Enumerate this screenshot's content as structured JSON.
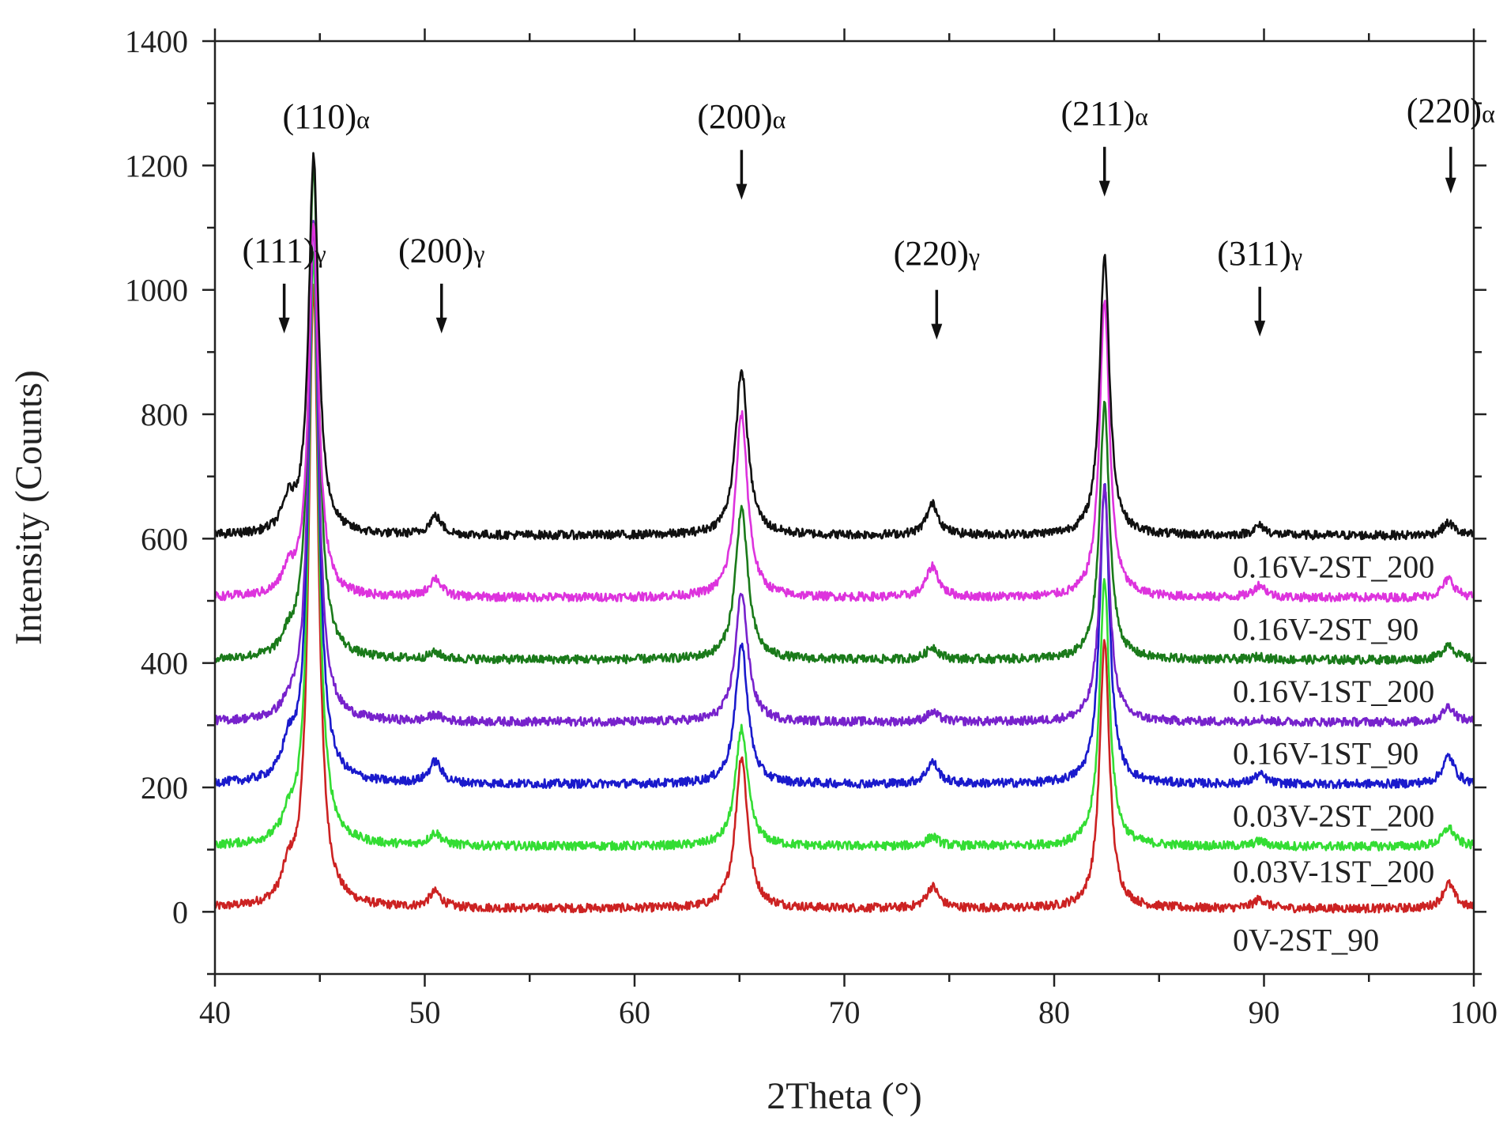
{
  "chart_data": {
    "type": "line",
    "title": "",
    "xlabel": "2Theta (°)",
    "ylabel": "Intensity (Counts)",
    "xlim": [
      40,
      100
    ],
    "ylim": [
      -100,
      1400
    ],
    "xticks": [
      40,
      50,
      60,
      70,
      80,
      90,
      100
    ],
    "yticks": [
      0,
      200,
      400,
      600,
      800,
      1000,
      1200,
      1400
    ],
    "grid": false,
    "series": [
      {
        "name": "0V-2ST_90",
        "color": "#cc2222",
        "baseline": 5,
        "peaks": [
          {
            "x": 43.5,
            "h": 45
          },
          {
            "x": 44.7,
            "h": 1000
          },
          {
            "x": 50.5,
            "h": 25
          },
          {
            "x": 65.1,
            "h": 245
          },
          {
            "x": 74.2,
            "h": 35
          },
          {
            "x": 82.4,
            "h": 430
          },
          {
            "x": 89.8,
            "h": 15
          },
          {
            "x": 98.8,
            "h": 40
          }
        ]
      },
      {
        "name": "0.03V-1ST_200",
        "color": "#33dd33",
        "baseline": 105,
        "peaks": [
          {
            "x": 43.5,
            "h": 30
          },
          {
            "x": 44.7,
            "h": 950
          },
          {
            "x": 50.5,
            "h": 20
          },
          {
            "x": 65.1,
            "h": 190
          },
          {
            "x": 74.2,
            "h": 15
          },
          {
            "x": 82.4,
            "h": 430
          },
          {
            "x": 89.8,
            "h": 8
          },
          {
            "x": 98.8,
            "h": 30
          }
        ]
      },
      {
        "name": "0.03V-2ST_200",
        "color": "#1a1acc",
        "baseline": 205,
        "peaks": [
          {
            "x": 43.5,
            "h": 50
          },
          {
            "x": 44.7,
            "h": 900
          },
          {
            "x": 50.5,
            "h": 35
          },
          {
            "x": 65.1,
            "h": 225
          },
          {
            "x": 74.2,
            "h": 35
          },
          {
            "x": 82.4,
            "h": 480
          },
          {
            "x": 89.8,
            "h": 15
          },
          {
            "x": 98.8,
            "h": 45
          }
        ]
      },
      {
        "name": "0.16V-1ST_90",
        "color": "#7722cc",
        "baseline": 305,
        "peaks": [
          {
            "x": 43.5,
            "h": 15
          },
          {
            "x": 44.7,
            "h": 800
          },
          {
            "x": 50.5,
            "h": 10
          },
          {
            "x": 65.1,
            "h": 210
          },
          {
            "x": 74.2,
            "h": 15
          },
          {
            "x": 82.4,
            "h": 380
          },
          {
            "x": 89.8,
            "h": 5
          },
          {
            "x": 98.8,
            "h": 25
          }
        ]
      },
      {
        "name": "0.16V-1ST_200",
        "color": "#1a7a1a",
        "baseline": 405,
        "peaks": [
          {
            "x": 43.5,
            "h": 25
          },
          {
            "x": 44.7,
            "h": 800
          },
          {
            "x": 50.5,
            "h": 10
          },
          {
            "x": 65.1,
            "h": 245
          },
          {
            "x": 74.2,
            "h": 20
          },
          {
            "x": 82.4,
            "h": 410
          },
          {
            "x": 89.8,
            "h": 5
          },
          {
            "x": 98.8,
            "h": 25
          }
        ]
      },
      {
        "name": "0.16V-2ST_90",
        "color": "#dd33dd",
        "baseline": 505,
        "peaks": [
          {
            "x": 43.5,
            "h": 35
          },
          {
            "x": 44.7,
            "h": 600
          },
          {
            "x": 50.5,
            "h": 30
          },
          {
            "x": 65.1,
            "h": 295
          },
          {
            "x": 74.2,
            "h": 50
          },
          {
            "x": 82.4,
            "h": 480
          },
          {
            "x": 89.8,
            "h": 20
          },
          {
            "x": 98.8,
            "h": 30
          }
        ]
      },
      {
        "name": "0.16V-2ST_200",
        "color": "#111111",
        "baseline": 605,
        "peaks": [
          {
            "x": 43.5,
            "h": 45
          },
          {
            "x": 44.7,
            "h": 605
          },
          {
            "x": 50.5,
            "h": 30
          },
          {
            "x": 65.1,
            "h": 265
          },
          {
            "x": 74.2,
            "h": 50
          },
          {
            "x": 82.4,
            "h": 450
          },
          {
            "x": 89.8,
            "h": 15
          },
          {
            "x": 98.8,
            "h": 20
          }
        ]
      }
    ],
    "series_labels": [
      {
        "text": "0.16V-2ST_200",
        "y": 555
      },
      {
        "text": "0.16V-2ST_90",
        "y": 455
      },
      {
        "text": "0.16V-1ST_200",
        "y": 355
      },
      {
        "text": "0.16V-1ST_90",
        "y": 255
      },
      {
        "text": "0.03V-2ST_200",
        "y": 155
      },
      {
        "text": "0.03V-1ST_200",
        "y": 65
      },
      {
        "text": "0V-2ST_90",
        "y": -45
      }
    ],
    "annotations": [
      {
        "main": "(110)",
        "sub": "α",
        "x": 45.3,
        "label_y": 1260,
        "arrow": false
      },
      {
        "main": "(200)",
        "sub": "α",
        "x": 65.1,
        "label_y": 1260,
        "arrow": true,
        "arrow_y1": 1225,
        "arrow_y2": 1145
      },
      {
        "main": "(211)",
        "sub": "α",
        "x": 82.4,
        "label_y": 1265,
        "arrow": true,
        "arrow_y1": 1230,
        "arrow_y2": 1150
      },
      {
        "main": "(220)",
        "sub": "α",
        "x": 98.9,
        "label_y": 1270,
        "arrow": true,
        "arrow_y1": 1230,
        "arrow_y2": 1155
      },
      {
        "main": "(111)",
        "sub": "γ",
        "x": 43.3,
        "label_y": 1045,
        "arrow": true,
        "arrow_y1": 1010,
        "arrow_y2": 930
      },
      {
        "main": "(200)",
        "sub": "γ",
        "x": 50.8,
        "label_y": 1045,
        "arrow": true,
        "arrow_y1": 1010,
        "arrow_y2": 930
      },
      {
        "main": "(220)",
        "sub": "γ",
        "x": 74.4,
        "label_y": 1040,
        "arrow": true,
        "arrow_y1": 1000,
        "arrow_y2": 920
      },
      {
        "main": "(311)",
        "sub": "γ",
        "x": 89.8,
        "label_y": 1040,
        "arrow": true,
        "arrow_y1": 1005,
        "arrow_y2": 925
      }
    ]
  }
}
